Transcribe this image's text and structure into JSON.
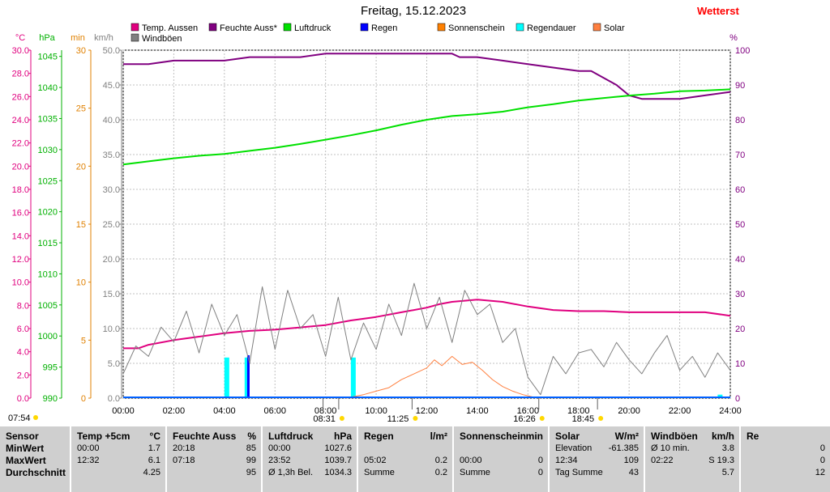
{
  "title": "Freitag, 15.12.2023",
  "brand": "Wetterst",
  "legend": [
    {
      "label": "Temp. Aussen",
      "color": "#e0007f"
    },
    {
      "label": "Feuchte Auss*",
      "color": "#800080"
    },
    {
      "label": "Luftdruck",
      "color": "#00e000"
    },
    {
      "label": "Regen",
      "color": "#0000ff"
    },
    {
      "label": "Sonnenschein",
      "color": "#ff8000"
    },
    {
      "label": "Regendauer",
      "color": "#00ffff"
    },
    {
      "label": "Solar",
      "color": "#ff8040"
    },
    {
      "label": "Windböen",
      "color": "#808080"
    }
  ],
  "chart_data": {
    "type": "line",
    "x_ticks": [
      "00:00",
      "02:00",
      "04:00",
      "06:00",
      "08:00",
      "10:00",
      "12:00",
      "14:00",
      "16:00",
      "18:00",
      "20:00",
      "22:00",
      "24:00"
    ],
    "axes": {
      "temp": {
        "unit": "°C",
        "ticks": [
          "0.0",
          "2.0",
          "4.0",
          "6.0",
          "8.0",
          "10.0",
          "12.0",
          "14.0",
          "16.0",
          "18.0",
          "20.0",
          "22.0",
          "24.0",
          "26.0",
          "28.0",
          "30.0"
        ],
        "color": "#e0007f"
      },
      "pressure": {
        "unit": "hPa",
        "ticks": [
          "990",
          "995",
          "1000",
          "1005",
          "1010",
          "1015",
          "1020",
          "1025",
          "1030",
          "1035",
          "1040",
          "1045"
        ],
        "color": "#00b000"
      },
      "minutes": {
        "unit": "min",
        "ticks": [
          "0",
          "5",
          "10",
          "15",
          "20",
          "25",
          "30"
        ],
        "color": "#e08000"
      },
      "wind": {
        "unit": "km/h",
        "ticks": [
          "0.0",
          "5.0",
          "10.0",
          "15.0",
          "20.0",
          "25.0",
          "30.0",
          "35.0",
          "40.0",
          "45.0",
          "50.0"
        ],
        "color": "#808080"
      },
      "humidity": {
        "unit": "%",
        "ticks": [
          "0",
          "10",
          "20",
          "30",
          "40",
          "50",
          "60",
          "70",
          "80",
          "90",
          "100"
        ],
        "color": "#800080"
      }
    },
    "series": [
      {
        "name": "Temp. Aussen",
        "axis": "temp",
        "color": "#e0007f",
        "x": [
          0,
          0.6,
          1,
          2,
          3,
          4,
          5,
          6,
          7,
          8,
          9,
          10,
          11,
          12,
          12.5,
          13,
          14,
          15,
          16,
          17,
          18,
          19,
          20,
          21,
          22,
          23,
          24
        ],
        "y": [
          4.3,
          4.3,
          4.6,
          5.0,
          5.3,
          5.6,
          5.8,
          5.9,
          6.1,
          6.3,
          6.7,
          7.0,
          7.4,
          7.8,
          8.1,
          8.3,
          8.5,
          8.3,
          7.9,
          7.6,
          7.5,
          7.5,
          7.4,
          7.4,
          7.4,
          7.4,
          7.1
        ]
      },
      {
        "name": "Feuchte Auss*",
        "axis": "humidity",
        "color": "#800080",
        "x": [
          0,
          1,
          2,
          3,
          4,
          5,
          6,
          7,
          8,
          9,
          10,
          11,
          12,
          13,
          13.3,
          14,
          15,
          16,
          17,
          18,
          18.5,
          19,
          19.5,
          20,
          20.5,
          21,
          22,
          23,
          24
        ],
        "y": [
          96,
          96,
          97,
          97,
          97,
          98,
          98,
          98,
          99,
          99,
          99,
          99,
          99,
          99,
          98,
          98,
          97,
          96,
          95,
          94,
          94,
          92,
          90,
          87,
          86,
          86,
          86,
          87,
          88
        ]
      },
      {
        "name": "Luftdruck",
        "axis": "pressure",
        "color": "#00e000",
        "x": [
          0,
          1,
          2,
          3,
          4,
          5,
          6,
          7,
          8,
          9,
          10,
          11,
          12,
          13,
          14,
          15,
          16,
          17,
          18,
          19,
          20,
          21,
          22,
          23,
          24
        ],
        "y": [
          1027.6,
          1028.1,
          1028.6,
          1029.0,
          1029.3,
          1029.8,
          1030.3,
          1030.9,
          1031.6,
          1032.3,
          1033.1,
          1034.0,
          1034.8,
          1035.4,
          1035.7,
          1036.1,
          1036.8,
          1037.3,
          1037.9,
          1038.3,
          1038.7,
          1039.0,
          1039.4,
          1039.5,
          1039.7
        ]
      },
      {
        "name": "Solar",
        "axis": "minutes",
        "color": "#ff8040",
        "x": [
          8.8,
          9.5,
          10,
          10.5,
          11,
          11.5,
          12,
          12.3,
          12.6,
          13,
          13.4,
          13.8,
          14.2,
          14.6,
          15,
          15.4,
          15.8,
          16.2,
          16.5
        ],
        "y": [
          0,
          0.3,
          0.6,
          0.9,
          1.6,
          2.1,
          2.6,
          3.3,
          2.8,
          3.6,
          2.9,
          3.1,
          2.4,
          1.6,
          1.0,
          0.6,
          0.3,
          0.1,
          0
        ]
      },
      {
        "name": "Windböen",
        "axis": "wind",
        "color": "#808080",
        "x": [
          0,
          0.5,
          1,
          1.5,
          2,
          2.5,
          3,
          3.5,
          4,
          4.5,
          5,
          5.5,
          6,
          6.5,
          7,
          7.5,
          8,
          8.5,
          9,
          9.5,
          10,
          10.5,
          11,
          11.5,
          12,
          12.5,
          13,
          13.5,
          14,
          14.5,
          15,
          15.5,
          16,
          16.5,
          17,
          17.5,
          18,
          18.5,
          19,
          19.5,
          20,
          20.5,
          21,
          21.5,
          22,
          22.5,
          23,
          23.5,
          24
        ],
        "y": [
          3.5,
          7.5,
          6.0,
          10.2,
          8.1,
          12.5,
          6.5,
          13.5,
          9.0,
          12.0,
          5.0,
          16.0,
          7.0,
          15.5,
          10.0,
          12.0,
          6.0,
          14.5,
          5.5,
          10.8,
          7.0,
          13.5,
          9.0,
          16.5,
          10.0,
          14.5,
          8.0,
          15.5,
          12.0,
          13.5,
          8.0,
          10.0,
          3.0,
          0.5,
          6.0,
          3.5,
          6.5,
          7.0,
          4.5,
          8.0,
          5.5,
          3.5,
          6.5,
          9.0,
          4.0,
          6.0,
          3.0,
          6.5,
          4.0
        ]
      }
    ],
    "bars": [
      {
        "name": "Regendauer",
        "axis": "minutes",
        "color": "#00ffff",
        "x": [
          4.0,
          4.8,
          9.0,
          23.5
        ],
        "y": [
          3.5,
          3.5,
          3.5,
          0.3
        ]
      },
      {
        "name": "Regen",
        "axis": "minutes",
        "color": "#0000ff",
        "x": [
          4.9
        ],
        "y": [
          3.7
        ]
      }
    ],
    "events": [
      {
        "label": "07:54",
        "time": 7.9
      },
      {
        "label": "08:31",
        "time": 8.52
      },
      {
        "label": "11:25",
        "time": 11.42
      },
      {
        "label": "16:26",
        "time": 16.43
      },
      {
        "label": "18:45",
        "time": 18.75
      }
    ]
  },
  "stats": {
    "cols": [
      {
        "header": [
          "Sensor",
          ""
        ],
        "rows": [
          [
            "MinWert",
            ""
          ],
          [
            "MaxWert",
            ""
          ],
          [
            "Durchschnitt",
            ""
          ]
        ]
      },
      {
        "header": [
          "Temp +5cm",
          "°C"
        ],
        "rows": [
          [
            "00:00",
            "1.7"
          ],
          [
            "12:32",
            "6.1"
          ],
          [
            "",
            "4.25"
          ]
        ]
      },
      {
        "header": [
          "Feuchte Auss",
          "%"
        ],
        "rows": [
          [
            "20:18",
            "85"
          ],
          [
            "07:18",
            "99"
          ],
          [
            "",
            "95"
          ]
        ]
      },
      {
        "header": [
          "Luftdruck",
          "hPa"
        ],
        "rows": [
          [
            "00:00",
            "1027.6"
          ],
          [
            "23:52",
            "1039.7"
          ],
          [
            "Ø 1,3h Bel.",
            "1034.3"
          ]
        ]
      },
      {
        "header": [
          "Regen",
          "l/m²"
        ],
        "rows": [
          [
            "",
            ""
          ],
          [
            "05:02",
            "0.2"
          ],
          [
            "Summe",
            "0.2"
          ]
        ]
      },
      {
        "header": [
          "Sonnenschein",
          "min"
        ],
        "rows": [
          [
            "",
            ""
          ],
          [
            "00:00",
            "0"
          ],
          [
            "Summe",
            "0"
          ]
        ]
      },
      {
        "header": [
          "Solar",
          "W/m²"
        ],
        "rows": [
          [
            "Elevation",
            "-61.385"
          ],
          [
            "12:34",
            "109"
          ],
          [
            "Tag Summe",
            "43"
          ]
        ]
      },
      {
        "header": [
          "Windböen",
          "km/h"
        ],
        "rows": [
          [
            "Ø 10 min.",
            "3.8"
          ],
          [
            "02:22",
            "S 19.3"
          ],
          [
            "",
            "5.7"
          ]
        ]
      },
      {
        "header": [
          "Re",
          ""
        ],
        "rows": [
          [
            "",
            "0"
          ],
          [
            "",
            "0"
          ],
          [
            "",
            "12"
          ]
        ]
      }
    ]
  }
}
